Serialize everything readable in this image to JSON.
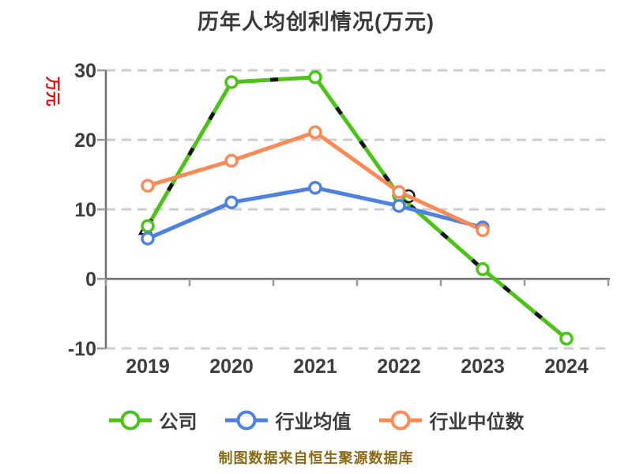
{
  "chart": {
    "title": "历年人均创利情况(万元)",
    "ylabel": "万元",
    "caption": "制图数据来自恒生聚源数据库"
  },
  "chart_data": {
    "type": "line",
    "title": "历年人均创利情况(万元)",
    "xlabel": "",
    "ylabel": "万元",
    "categories": [
      "2019",
      "2020",
      "2021",
      "2022",
      "2023",
      "2024"
    ],
    "series": [
      {
        "name": "公司",
        "color": "#4cc417",
        "marker": "circle",
        "overlay_dash_color": "#141414",
        "values": [
          7.6,
          28.3,
          29.0,
          12.0,
          1.4,
          -8.6
        ]
      },
      {
        "name": "行业均值",
        "color": "#4f82e0",
        "marker": "circle",
        "values": [
          5.8,
          11.0,
          13.1,
          10.5,
          7.4,
          null
        ]
      },
      {
        "name": "行业中位数",
        "color": "#fa8b57",
        "marker": "circle",
        "values": [
          13.4,
          17.0,
          21.1,
          12.5,
          7.0,
          null
        ]
      }
    ],
    "yticks": [
      30,
      20,
      10,
      0,
      -10
    ],
    "ylim": [
      -10,
      30
    ],
    "grid": "horizontal-dashed",
    "legend_position": "bottom",
    "source_note": "制图数据来自恒生聚源数据库"
  },
  "colors": {
    "background": "#ffffff",
    "title_text": "#3a3a3a",
    "axis_text": "#3d3d3d",
    "ylabel_text": "#f20000",
    "caption_text": "#8a6a15",
    "gridline": "#cdcdcd",
    "axis_line": "#6e6e6e",
    "tick": "#999999",
    "marker_fill": "#ffffff"
  }
}
